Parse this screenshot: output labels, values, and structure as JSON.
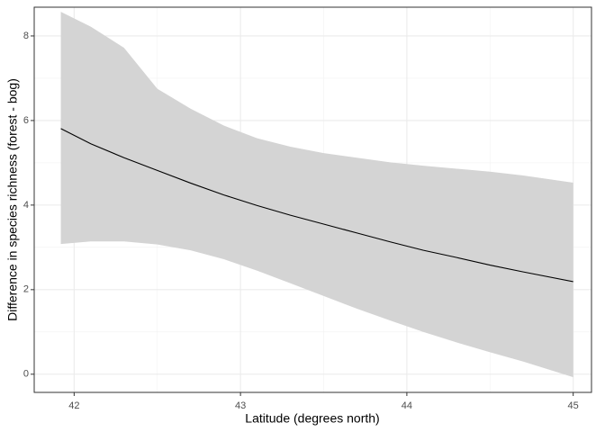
{
  "chart_data": {
    "type": "line",
    "x_label": "Latitude (degrees north)",
    "y_label": "Difference in species richness (forest - bog)",
    "x": [
      41.92,
      42.1,
      42.3,
      42.5,
      42.7,
      42.9,
      43.1,
      43.3,
      43.5,
      43.7,
      43.9,
      44.1,
      44.3,
      44.5,
      44.7,
      45.0
    ],
    "values": [
      5.81,
      5.45,
      5.12,
      4.82,
      4.52,
      4.24,
      3.99,
      3.76,
      3.55,
      3.34,
      3.13,
      2.93,
      2.76,
      2.58,
      2.42,
      2.19
    ],
    "upper": [
      8.57,
      8.22,
      7.72,
      6.75,
      6.28,
      5.88,
      5.58,
      5.38,
      5.23,
      5.12,
      5.01,
      4.93,
      4.86,
      4.79,
      4.7,
      4.53
    ],
    "lower": [
      3.08,
      3.14,
      3.14,
      3.07,
      2.93,
      2.72,
      2.45,
      2.15,
      1.85,
      1.55,
      1.27,
      1.0,
      0.75,
      0.52,
      0.3,
      -0.07
    ],
    "color": "#000000",
    "band_color": "#d4d4d4",
    "xlim": [
      41.76,
      45.11
    ],
    "ylim": [
      -0.43,
      8.68
    ],
    "xticks": [
      42,
      43,
      44,
      45
    ],
    "yticks": [
      0,
      2,
      4,
      6,
      8
    ],
    "xminor": [
      42.5,
      43.5,
      44.5
    ],
    "yminor": [
      1,
      3,
      5,
      7
    ],
    "grid": true
  }
}
